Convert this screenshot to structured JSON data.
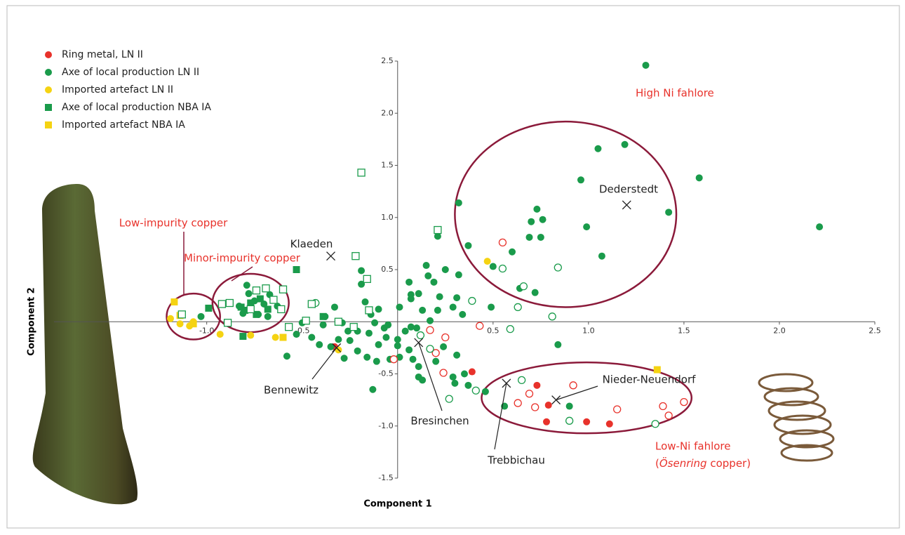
{
  "chart_data": {
    "type": "scatter",
    "x_label": "Component 1",
    "y_label": "Component 2",
    "xlim": [
      -1.8,
      2.5
    ],
    "ylim": [
      -1.5,
      2.5
    ],
    "xticks": [
      {
        "value": -1,
        "label": "-1.0"
      },
      -0.5,
      0.5,
      {
        "value": 1,
        "label": "1.0"
      },
      1.5,
      {
        "value": 2,
        "label": "2.0"
      },
      2.5
    ],
    "yticks": [
      -1.5,
      {
        "value": -1,
        "label": "-1.0"
      },
      -0.5,
      0.5,
      {
        "value": 1,
        "label": "1.0"
      },
      1.5,
      {
        "value": 2,
        "label": "2.0"
      },
      2.5
    ],
    "series": [
      {
        "name": "Ring metal, LN II",
        "color": "#e8322b",
        "marker": "circle",
        "fill": true,
        "x": [
          -0.33,
          0.39,
          0.73,
          0.79,
          0.78,
          0.99,
          1.11
        ],
        "values": [
          -0.24,
          -0.48,
          -0.61,
          -0.8,
          -0.96,
          -0.96,
          -0.98
        ]
      },
      {
        "name": "Axe of local production LN II",
        "color": "#1a9b4b",
        "marker": "circle",
        "fill": true,
        "x": [
          1.3,
          1.19,
          1.05,
          1.58,
          0.96,
          0.32,
          0.73,
          1.42,
          0.99,
          2.21,
          0.76,
          0.7,
          0.69,
          0.75,
          0.6,
          1.07,
          0.37,
          0.21,
          0.5,
          0.64,
          0.72,
          0.49,
          0.84,
          0.15,
          0.16,
          0.25,
          0.32,
          0.19,
          0.06,
          -0.19,
          -0.19,
          0.07,
          0.11,
          0.07,
          0.01,
          0.22,
          0.31,
          0.29,
          0.21,
          0.13,
          0.34,
          0.17,
          0.1,
          0.04,
          0,
          -0.07,
          -0.06,
          -0.1,
          -0.15,
          -0.21,
          -0.25,
          -0.21,
          -0.16,
          -0.11,
          -0.04,
          0.01,
          0,
          0.06,
          0.08,
          0.11,
          0.11,
          0.13,
          0.2,
          0.24,
          0.31,
          0.29,
          0.3,
          0.35,
          0.37,
          0.46,
          0.56,
          0.9,
          -0.13,
          -0.28,
          -0.35,
          -0.41,
          -0.45,
          -0.39,
          -0.33,
          -0.38,
          -0.29,
          -0.26,
          -0.31,
          -0.53,
          -0.58,
          -0.5,
          -0.14,
          -0.12,
          -0.05,
          0.07,
          -0.17,
          -0.1,
          -0.83,
          -1.03,
          -0.78,
          -0.75,
          -0.7,
          -0.67,
          -0.81,
          -0.63,
          -0.73,
          -0.68,
          -0.79
        ],
        "values": [
          2.46,
          1.7,
          1.66,
          1.38,
          1.36,
          1.14,
          1.08,
          1.05,
          0.91,
          0.91,
          0.98,
          0.96,
          0.81,
          0.81,
          0.67,
          0.63,
          0.73,
          0.82,
          0.53,
          0.32,
          0.28,
          0.14,
          -0.22,
          0.54,
          0.44,
          0.5,
          0.45,
          0.38,
          0.38,
          0.49,
          0.36,
          0.26,
          0.27,
          0.22,
          0.14,
          0.24,
          0.23,
          0.14,
          0.11,
          0.11,
          0.07,
          0.01,
          -0.06,
          -0.09,
          -0.17,
          -0.06,
          -0.15,
          -0.22,
          -0.11,
          -0.09,
          -0.18,
          -0.28,
          -0.34,
          -0.38,
          -0.36,
          -0.34,
          -0.23,
          -0.27,
          -0.36,
          -0.43,
          -0.53,
          -0.56,
          -0.38,
          -0.24,
          -0.32,
          -0.53,
          -0.59,
          -0.5,
          -0.61,
          -0.67,
          -0.81,
          -0.81,
          -0.65,
          -0.35,
          -0.24,
          -0.22,
          -0.15,
          -0.03,
          0.14,
          0.05,
          -0.01,
          -0.09,
          -0.17,
          -0.12,
          -0.33,
          -0.01,
          0.07,
          -0.01,
          -0.03,
          -0.05,
          0.19,
          0.12,
          0.15,
          0.05,
          0.27,
          0.2,
          0.17,
          0.26,
          0.08,
          0.15,
          0.07,
          0.05,
          0.35
        ]
      },
      {
        "name": "Imported artefact LN II",
        "color": "#f5d312",
        "marker": "circle",
        "fill": true,
        "x": [
          0.47,
          -1.19,
          -1.14,
          -1.09,
          -1.07,
          -0.93,
          -0.77,
          -0.64,
          -0.31
        ],
        "values": [
          0.58,
          0.03,
          -0.02,
          -0.04,
          0,
          -0.12,
          -0.13,
          -0.15,
          -0.27
        ]
      },
      {
        "name": "Axe of local production NBA IA",
        "color": "#1a9b4b",
        "marker": "square",
        "fill": true,
        "x": [
          -0.53,
          -0.99,
          -0.81,
          -0.39,
          -0.77,
          -0.82,
          -0.72,
          -0.68,
          -0.74,
          -0.8
        ],
        "values": [
          0.5,
          0.13,
          -0.14,
          0.05,
          0.18,
          0.14,
          0.22,
          0.12,
          0.07,
          0.11
        ]
      },
      {
        "name": "Imported artefact NBA IA",
        "color": "#f5d312",
        "marker": "square",
        "fill": true,
        "x": [
          -1.17,
          -1.14,
          -1.07,
          1.36,
          -0.6
        ],
        "values": [
          0.19,
          0.06,
          -0.02,
          -0.46,
          -0.15
        ]
      },
      {
        "color": "#e8322b",
        "marker": "circle",
        "fill": false,
        "x": [
          0.55,
          0.17,
          0.25,
          0.2,
          0.24,
          0.43,
          0.63,
          0.69,
          0.72,
          0.92,
          1.15,
          1.39,
          1.42,
          1.5,
          -0.02
        ],
        "values": [
          0.76,
          -0.08,
          -0.15,
          -0.3,
          -0.49,
          -0.04,
          -0.78,
          -0.69,
          -0.82,
          -0.61,
          -0.84,
          -0.81,
          -0.9,
          -0.77,
          -0.36
        ]
      },
      {
        "color": "#1a9b4b",
        "marker": "circle",
        "fill": false,
        "x": [
          0.55,
          0.66,
          0.84,
          0.81,
          0.63,
          0.59,
          0.39,
          0.17,
          0.27,
          0.41,
          0.65,
          0.9,
          1.35,
          -0.43,
          0.12
        ],
        "values": [
          0.51,
          0.34,
          0.52,
          0.05,
          0.14,
          -0.07,
          0.2,
          -0.26,
          -0.74,
          -0.66,
          -0.56,
          -0.95,
          -0.98,
          0.18,
          -0.13
        ]
      },
      {
        "color": "#1a9b4b",
        "marker": "square",
        "fill": false,
        "x": [
          -0.19,
          0.21,
          -0.22,
          -0.16,
          -0.6,
          -0.45,
          -0.48,
          -0.31,
          -0.23,
          -0.15,
          -0.57,
          -0.89,
          -0.92,
          -0.88,
          -0.74,
          -0.69,
          -0.65,
          -0.61,
          -0.77,
          -1.13
        ],
        "values": [
          1.43,
          0.88,
          0.63,
          0.41,
          0.31,
          0.17,
          0.01,
          0,
          -0.05,
          0.11,
          -0.05,
          -0.01,
          0.17,
          0.18,
          0.3,
          0.32,
          0.21,
          0.12,
          0.12,
          0.07
        ]
      }
    ],
    "regions": [
      {
        "label": "High Ni fahlore",
        "cx": 0.88,
        "cy": 1.03,
        "rx": 0.58,
        "ry": 0.89
      },
      {
        "label": "Low-impurity copper",
        "cx": -1.07,
        "cy": 0.05,
        "rx": 0.14,
        "ry": 0.22
      },
      {
        "label": "Minor-impurity copper",
        "cx": -0.77,
        "cy": 0.18,
        "rx": 0.2,
        "ry": 0.28
      },
      {
        "label": "Low-Ni fahlore",
        "label_line2": [
          {
            "text": "("
          },
          {
            "text": "Ösenring",
            "italic": true
          },
          {
            "text": " copper)"
          }
        ],
        "cx": 0.99,
        "cy": -0.73,
        "rx": 0.55,
        "ry": 0.34
      }
    ],
    "sites": [
      {
        "label": "Klaeden",
        "x": -0.35,
        "y": 0.63
      },
      {
        "label": "Dederstedt",
        "x": 1.2,
        "y": 1.12
      },
      {
        "label": "Bennewitz",
        "x": -0.32,
        "y": -0.25
      },
      {
        "label": "Bresinchen",
        "x": 0.11,
        "y": -0.2
      },
      {
        "label": "Trebbichau",
        "x": 0.57,
        "y": -0.59
      },
      {
        "label": "Nieder-Neuendorf",
        "x": 0.83,
        "y": -0.75
      }
    ]
  }
}
